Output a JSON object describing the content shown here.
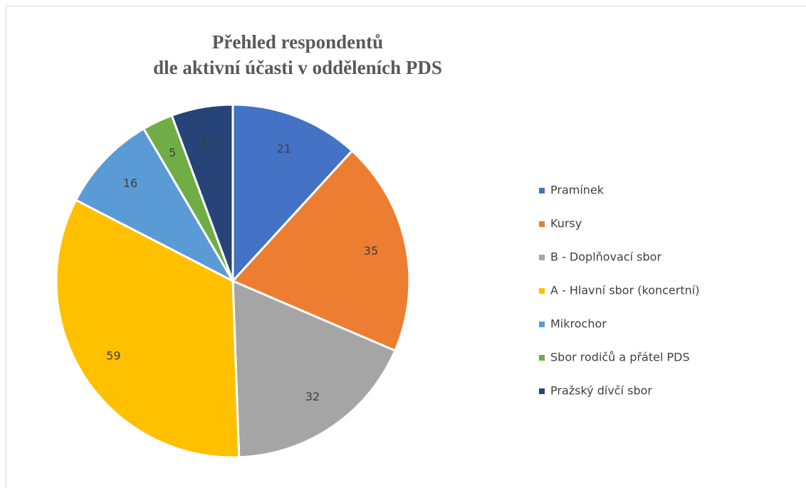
{
  "chart_data": {
    "type": "pie",
    "title": [
      "Přehled respondentů",
      "dle aktivní účasti v odděleních PDS"
    ],
    "categories": [
      "Pramínek",
      "Kursy",
      "B - Doplňovací sbor",
      "A - Hlavní sbor (koncertní)",
      "Mikrochor",
      "Sbor rodičů a přátel PDS",
      "Pražský dívčí sbor"
    ],
    "values": [
      21,
      35,
      32,
      59,
      16,
      5,
      10
    ],
    "colors": [
      "#4472c4",
      "#ed7d31",
      "#a5a5a5",
      "#ffc000",
      "#5b9bd5",
      "#70ad47",
      "#264478"
    ],
    "legend": "right"
  }
}
